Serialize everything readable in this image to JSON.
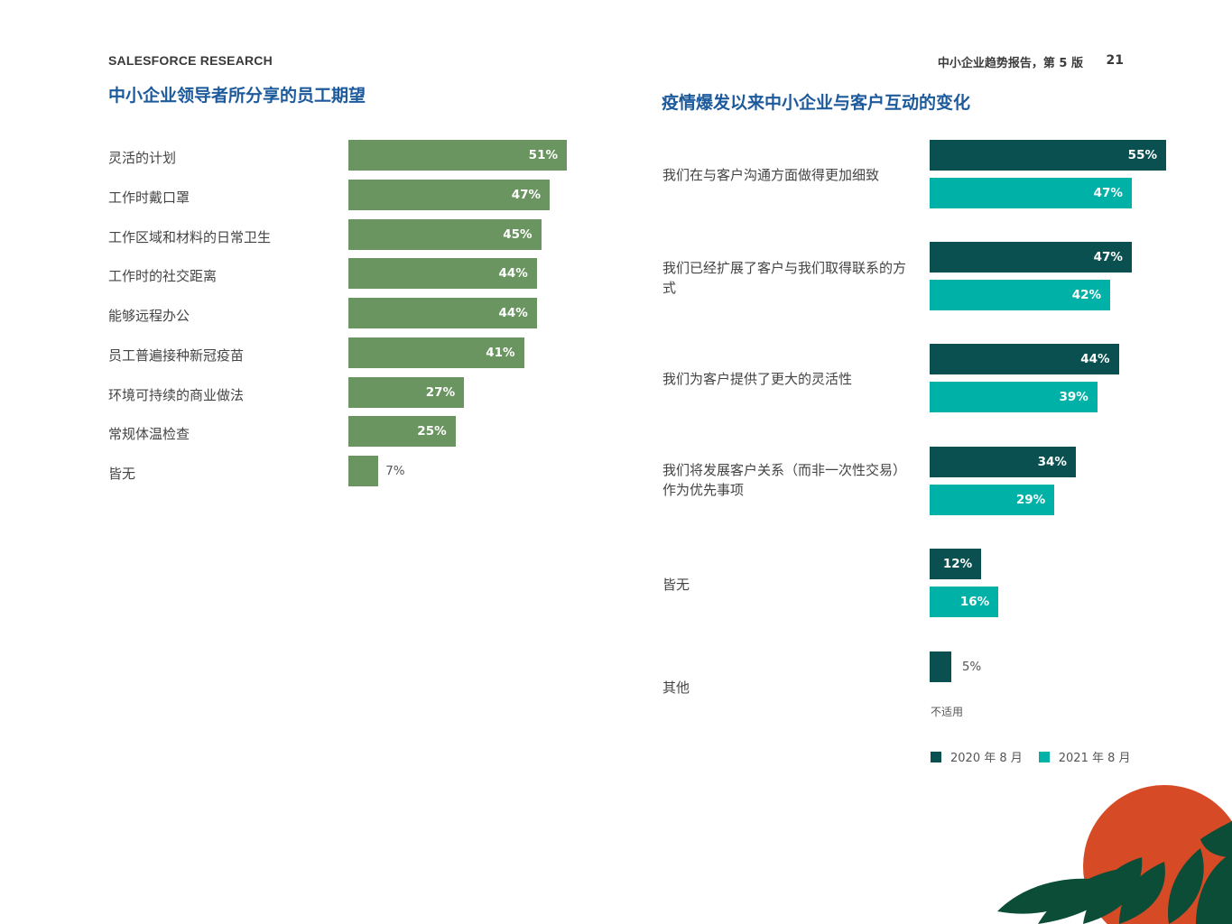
{
  "header": {
    "brand": "SALESFORCE RESEARCH",
    "report": "中小企业趋势报告，第 5 版",
    "page_number": "21"
  },
  "colors": {
    "left_bar": "#6a9560",
    "series_2020": "#0b5050",
    "series_2021": "#00b1a8",
    "title": "#1d5a9c",
    "sun": "#d64a26",
    "leaves": "#0b4d36"
  },
  "chart_data": [
    {
      "type": "bar",
      "orientation": "horizontal",
      "title": "中小企业领导者所分享的员工期望",
      "categories": [
        "灵活的计划",
        "工作时戴口罩",
        "工作区域和材料的日常卫生",
        "工作时的社交距离",
        "能够远程办公",
        "员工普遍接种新冠疫苗",
        "环境可持续的商业做法",
        "常规体温检查",
        "皆无"
      ],
      "values": [
        51,
        47,
        45,
        44,
        44,
        41,
        27,
        25,
        7
      ],
      "value_labels": [
        "51%",
        "47%",
        "45%",
        "44%",
        "44%",
        "41%",
        "27%",
        "25%",
        "7%"
      ],
      "unit": "%"
    },
    {
      "type": "bar",
      "orientation": "horizontal",
      "title": "疫情爆发以来中小企业与客户互动的变化",
      "categories": [
        "我们在与客户沟通方面做得更加细致",
        "我们已经扩展了客户与我们取得联系的方式",
        "我们为客户提供了更大的灵活性",
        "我们将发展客户关系（而非一次性交易）作为优先事项",
        "皆无",
        "其他"
      ],
      "series": [
        {
          "name": "2020 年 8 月",
          "values": [
            55,
            47,
            44,
            34,
            12,
            5
          ],
          "value_labels": [
            "55%",
            "47%",
            "44%",
            "34%",
            "12%",
            "5%"
          ]
        },
        {
          "name": "2021 年 8 月",
          "values": [
            47,
            42,
            39,
            29,
            16,
            null
          ],
          "value_labels": [
            "47%",
            "42%",
            "39%",
            "29%",
            "16%",
            "不适用"
          ]
        }
      ],
      "legend": "bottom",
      "unit": "%"
    }
  ]
}
